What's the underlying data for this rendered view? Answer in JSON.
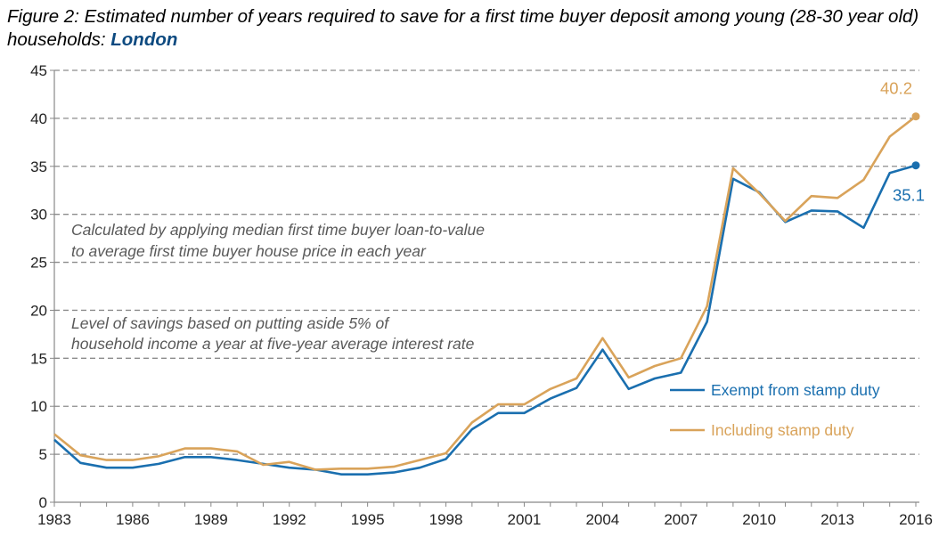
{
  "title": {
    "main": "Figure 2: Estimated number of years required to save for a first time buyer deposit among young (28-30 year old) households: ",
    "highlight": "London"
  },
  "annotations": [
    "Calculated by applying median first time buyer loan-to-value",
    "to average first time buyer house price in each year",
    "Level of savings based on putting aside 5% of",
    "household income a year at five-year average interest rate"
  ],
  "colors": {
    "exempt": "#1a6faf",
    "including": "#d9a35a",
    "grid": "#8c8c8c"
  },
  "chart_data": {
    "type": "line",
    "title": "Figure 2: Estimated number of years required to save for a first time buyer deposit among young (28-30 year old) households: London",
    "x": [
      1983,
      1984,
      1985,
      1986,
      1987,
      1988,
      1989,
      1990,
      1991,
      1992,
      1993,
      1994,
      1995,
      1996,
      1997,
      1998,
      1999,
      2000,
      2001,
      2002,
      2003,
      2004,
      2005,
      2006,
      2007,
      2008,
      2009,
      2010,
      2011,
      2012,
      2013,
      2014,
      2015,
      2016
    ],
    "xticks": [
      "1983",
      "1986",
      "1989",
      "1992",
      "1995",
      "1998",
      "2001",
      "2004",
      "2007",
      "2010",
      "2013",
      "2016"
    ],
    "yticks": [
      "0",
      "5",
      "10",
      "15",
      "20",
      "25",
      "30",
      "35",
      "40",
      "45"
    ],
    "ylim": [
      0,
      45
    ],
    "xlim": [
      1983,
      2016
    ],
    "grid": "horizontal dashed",
    "legend_position": "right-middle",
    "series": [
      {
        "name": "Exempt from stamp duty",
        "color": "#1a6faf",
        "values": [
          6.5,
          4.1,
          3.6,
          3.6,
          4.0,
          4.7,
          4.7,
          4.4,
          4.0,
          3.6,
          3.4,
          2.9,
          2.9,
          3.1,
          3.6,
          4.5,
          7.6,
          9.3,
          9.3,
          10.8,
          11.9,
          15.9,
          11.8,
          12.9,
          13.5,
          18.8,
          33.7,
          32.3,
          29.2,
          30.4,
          30.3,
          28.6,
          34.3,
          35.1
        ],
        "end_label": "35.1"
      },
      {
        "name": "Including stamp duty",
        "color": "#d9a35a",
        "values": [
          7.1,
          4.9,
          4.4,
          4.4,
          4.8,
          5.6,
          5.6,
          5.3,
          3.9,
          4.2,
          3.4,
          3.5,
          3.5,
          3.7,
          4.4,
          5.1,
          8.3,
          10.2,
          10.2,
          11.8,
          12.9,
          17.1,
          13.0,
          14.2,
          15.0,
          20.4,
          34.8,
          32.2,
          29.3,
          31.9,
          31.7,
          33.6,
          38.1,
          40.2
        ],
        "end_label": "40.2"
      }
    ]
  }
}
